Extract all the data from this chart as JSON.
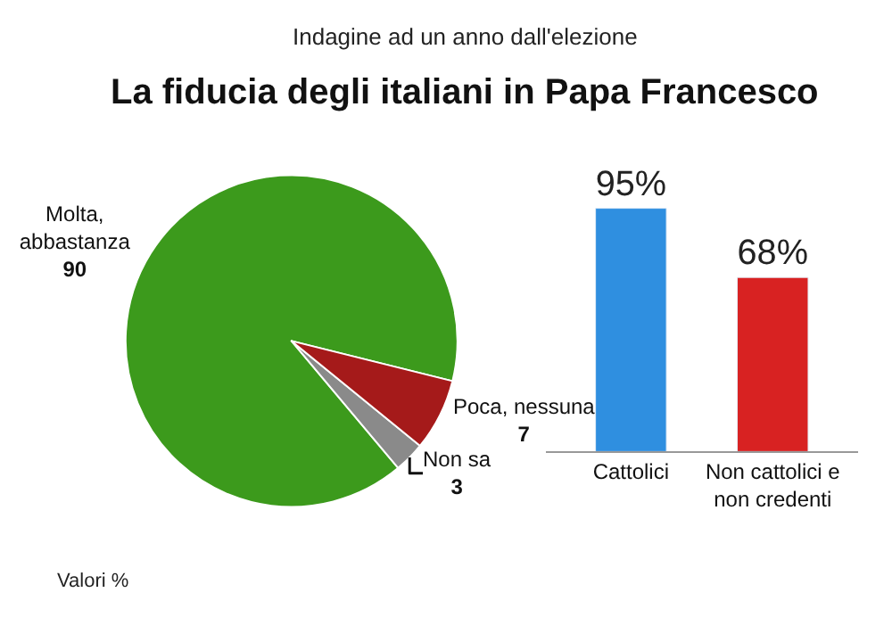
{
  "chart_data": [
    {
      "type": "pie",
      "subtitle": "Indagine ad un anno dall'elezione",
      "title": "La fiducia degli italiani in Papa Francesco",
      "categories": [
        "Molta, abbastanza",
        "Non sa",
        "Poca, nessuna"
      ],
      "values": [
        90,
        3,
        7
      ],
      "colors": [
        "#3c9a1c",
        "#8a8a8a",
        "#a51a1a"
      ],
      "data_labels": true,
      "annotations": [
        "Valori %"
      ]
    },
    {
      "type": "bar",
      "categories": [
        "Cattolici",
        "Non cattolici e non credenti"
      ],
      "values": [
        95,
        68
      ],
      "colors": [
        "#2f8fe0",
        "#d82222"
      ],
      "value_labels": [
        "95%",
        "68%"
      ]
    }
  ]
}
